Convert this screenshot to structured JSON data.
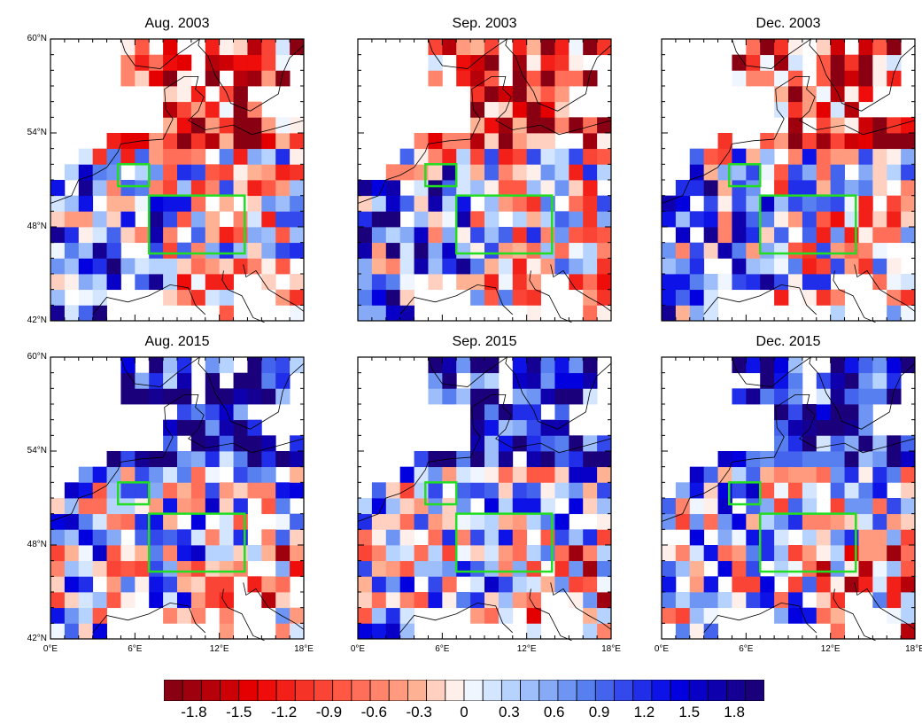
{
  "panels": [
    {
      "title": "Aug. 2003",
      "sign": "neg"
    },
    {
      "title": "Sep. 2003",
      "sign": "neg"
    },
    {
      "title": "Dec. 2003",
      "sign": "neg"
    },
    {
      "title": "Aug. 2015",
      "sign": "pos"
    },
    {
      "title": "Sep. 2015",
      "sign": "pos"
    },
    {
      "title": "Dec. 2015",
      "sign": "pos"
    }
  ],
  "lat_labels": [
    "60°N",
    "54°N",
    "48°N",
    "42°N"
  ],
  "lon_labels": [
    "0°E",
    "6°E",
    "12°E",
    "18°E"
  ],
  "colorbar": {
    "labels": [
      "-1.8",
      "-1.5",
      "-1.2",
      "-0.9",
      "-0.6",
      "-0.3",
      "0",
      "0.3",
      "0.6",
      "0.9",
      "1.2",
      "1.5",
      "1.8"
    ],
    "min": -2.0,
    "max": 2.0,
    "n_bins": 32
  },
  "boxes_color": "#22dd22",
  "map_extent": {
    "lon": [
      0,
      18
    ],
    "lat": [
      42,
      60
    ]
  }
}
